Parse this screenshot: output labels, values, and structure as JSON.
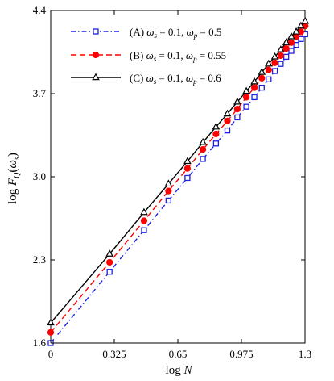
{
  "chart_data": {
    "type": "line",
    "xlabel": "log N",
    "ylabel": "log F_Q(ω_s)",
    "xlim": [
      0,
      1.3
    ],
    "ylim": [
      1.6,
      4.4
    ],
    "xticks": [
      0,
      0.325,
      0.65,
      0.975,
      1.3
    ],
    "xtick_labels": [
      "0",
      "0.325",
      "0.65",
      "0.975",
      "1.3"
    ],
    "yticks": [
      1.6,
      2.3,
      3.0,
      3.7,
      4.4
    ],
    "ytick_labels": [
      "1.6",
      "2.3",
      "3.0",
      "3.7",
      "4.4"
    ],
    "legend_position": "top-left",
    "grid": false,
    "x": [
      0,
      0.301,
      0.477,
      0.602,
      0.699,
      0.778,
      0.845,
      0.903,
      0.954,
      1.0,
      1.041,
      1.079,
      1.114,
      1.146,
      1.176,
      1.204,
      1.23,
      1.255,
      1.279,
      1.301
    ],
    "series": [
      {
        "name": "(A) ω_s = 0.1, ω_p = 0.5",
        "legend_parts": {
          "label": "(A)",
          "ws": "0.1",
          "wp": "0.5"
        },
        "color": "#1f1fe0",
        "dash": "dashdot",
        "marker": "square-open",
        "values": [
          1.6,
          2.2,
          2.55,
          2.8,
          2.99,
          3.15,
          3.28,
          3.39,
          3.5,
          3.59,
          3.67,
          3.75,
          3.82,
          3.89,
          3.95,
          4.01,
          4.06,
          4.11,
          4.16,
          4.2
        ]
      },
      {
        "name": "(B) ω_s = 0.1, ω_p = 0.55",
        "legend_parts": {
          "label": "(B)",
          "ws": "0.1",
          "wp": "0.55"
        },
        "color": "#ff0000",
        "dash": "dashed",
        "marker": "circle-filled",
        "values": [
          1.69,
          2.28,
          2.63,
          2.88,
          3.07,
          3.23,
          3.36,
          3.47,
          3.57,
          3.67,
          3.75,
          3.83,
          3.9,
          3.96,
          4.02,
          4.08,
          4.13,
          4.18,
          4.22,
          4.27
        ]
      },
      {
        "name": "(C) ω_s = 0.1, ω_p = 0.6",
        "legend_parts": {
          "label": "(C)",
          "ws": "0.1",
          "wp": "0.6"
        },
        "color": "#000000",
        "dash": "solid",
        "marker": "triangle-open",
        "values": [
          1.77,
          2.35,
          2.7,
          2.94,
          3.13,
          3.29,
          3.42,
          3.53,
          3.63,
          3.72,
          3.8,
          3.88,
          3.95,
          4.01,
          4.07,
          4.13,
          4.18,
          4.22,
          4.27,
          4.31
        ]
      }
    ]
  }
}
